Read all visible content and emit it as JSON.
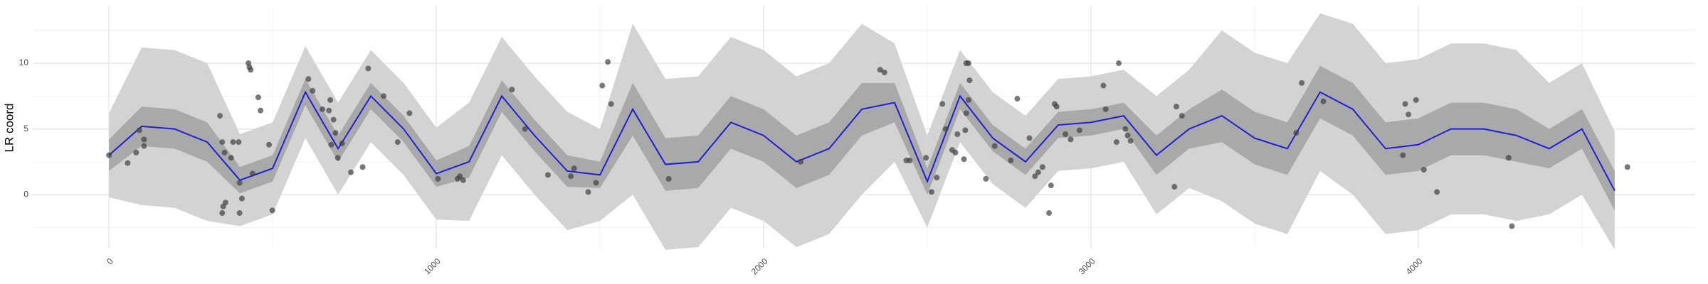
{
  "chart_data": {
    "type": "line",
    "ylabel": "LR coord",
    "xlim": [
      -233,
      4846
    ],
    "ylim": [
      -4.1,
      14.38
    ],
    "xticks": [
      0,
      1000,
      2000,
      3000,
      4000
    ],
    "yticks": [
      0,
      5,
      10
    ],
    "xminor": [
      500,
      1500,
      2500,
      3500,
      4500
    ],
    "yminor": [
      -2.5,
      2.5,
      7.5,
      12.5
    ],
    "grid": true,
    "x": [
      0,
      100,
      200,
      300,
      400,
      500,
      600,
      700,
      800,
      900,
      1000,
      1100,
      1200,
      1300,
      1400,
      1500,
      1600,
      1700,
      1800,
      1900,
      2000,
      2100,
      2200,
      2300,
      2400,
      2500,
      2600,
      2700,
      2800,
      2900,
      3000,
      3100,
      3200,
      3300,
      3400,
      3500,
      3600,
      3700,
      3800,
      3900,
      4000,
      4100,
      4200,
      4300,
      4400,
      4500,
      4600
    ],
    "bands": [
      {
        "color": "#d3d3d3",
        "lower": [
          -0.2,
          -0.8,
          -1.0,
          -2.0,
          -2.4,
          -1.5,
          4.3,
          0.0,
          4.0,
          1.5,
          -1.9,
          -2.0,
          3.0,
          0.0,
          -2.7,
          -2.0,
          0.0,
          -4.2,
          -4.0,
          -1.0,
          -2.0,
          -4.0,
          -3.0,
          0.0,
          2.5,
          -2.5,
          4.0,
          0.8,
          -1.0,
          1.8,
          2.0,
          2.5,
          -1.5,
          0.5,
          -0.5,
          -2.2,
          -3.0,
          1.8,
          0.0,
          -3.0,
          -2.7,
          -1.5,
          -1.5,
          -2.0,
          -1.5,
          0.0,
          -4.2
        ],
        "upper": [
          6.2,
          11.2,
          11.0,
          10.0,
          4.6,
          5.5,
          11.3,
          7.0,
          11.0,
          8.5,
          5.1,
          7.0,
          12.0,
          9.0,
          6.3,
          5.0,
          13.0,
          8.8,
          9.0,
          12.0,
          11.0,
          9.0,
          10.0,
          13.0,
          11.5,
          4.5,
          11.0,
          7.8,
          6.0,
          8.8,
          9.0,
          9.5,
          7.5,
          9.5,
          12.5,
          10.8,
          10.0,
          13.8,
          13.0,
          10.0,
          10.3,
          11.5,
          11.5,
          11.0,
          8.5,
          10.0,
          4.8
        ]
      },
      {
        "color": "#a9a9a9",
        "lower": [
          1.8,
          3.7,
          3.5,
          2.5,
          0.1,
          1.0,
          6.8,
          2.5,
          6.5,
          4.0,
          0.6,
          1.3,
          6.3,
          3.3,
          0.6,
          0.5,
          4.5,
          0.3,
          0.5,
          3.5,
          2.5,
          0.5,
          1.5,
          4.5,
          5.5,
          0.0,
          6.5,
          3.3,
          1.5,
          4.3,
          4.5,
          5.0,
          1.5,
          3.5,
          4.0,
          2.3,
          1.5,
          5.8,
          4.5,
          1.5,
          1.8,
          3.0,
          3.0,
          2.5,
          2.0,
          3.5,
          -1.2
        ],
        "upper": [
          4.2,
          6.7,
          6.5,
          5.5,
          2.1,
          3.0,
          8.8,
          4.5,
          8.5,
          6.0,
          2.6,
          3.7,
          8.7,
          5.7,
          3.0,
          2.5,
          8.5,
          4.3,
          4.5,
          7.5,
          6.5,
          4.5,
          5.5,
          8.5,
          8.5,
          2.0,
          8.5,
          5.3,
          3.5,
          6.3,
          6.5,
          7.0,
          4.5,
          6.5,
          8.0,
          6.3,
          5.5,
          9.8,
          8.5,
          5.5,
          5.8,
          7.0,
          7.0,
          6.5,
          5.0,
          6.5,
          1.8
        ]
      }
    ],
    "line": {
      "color": "#1f1fd6",
      "values": [
        3.0,
        5.2,
        5.0,
        4.0,
        1.1,
        2.0,
        7.8,
        3.5,
        7.5,
        5.0,
        1.6,
        2.5,
        7.5,
        4.5,
        1.8,
        1.5,
        6.5,
        2.3,
        2.5,
        5.5,
        4.5,
        2.5,
        3.5,
        6.5,
        7.0,
        1.0,
        7.5,
        4.3,
        2.5,
        5.3,
        5.5,
        6.0,
        3.0,
        5.0,
        6.0,
        4.3,
        3.5,
        7.8,
        6.5,
        3.5,
        3.8,
        5.0,
        5.0,
        4.5,
        3.5,
        5.0,
        0.3
      ]
    },
    "points": {
      "color": "#404040",
      "x": [
        0,
        57,
        93,
        107,
        107,
        83,
        339,
        346,
        353,
        349,
        356,
        346,
        373,
        379,
        396,
        399,
        399,
        406,
        426,
        429,
        433,
        439,
        456,
        463,
        499,
        489,
        609,
        622,
        652,
        676,
        672,
        679,
        686,
        692,
        699,
        712,
        739,
        775,
        792,
        839,
        882,
        918,
        1005,
        1065,
        1072,
        1082,
        1231,
        1271,
        1341,
        1411,
        1421,
        1464,
        1488,
        1507,
        1524,
        1534,
        1710,
        2113,
        2356,
        2369,
        2436,
        2446,
        2496,
        2513,
        2529,
        2546,
        2556,
        2576,
        2586,
        2592,
        2612,
        2616,
        2619,
        2626,
        2629,
        2619,
        2626,
        2679,
        2706,
        2755,
        2775,
        2812,
        2829,
        2839,
        2852,
        2878,
        2872,
        2889,
        2895,
        2922,
        2938,
        2965,
        3038,
        3045,
        3078,
        3085,
        3105,
        3112,
        3121,
        3255,
        3261,
        3278,
        3627,
        3644,
        3710,
        3953,
        3960,
        3970,
        3993,
        4017,
        4057,
        4276,
        4286,
        4639
      ],
      "y": [
        3.0,
        2.4,
        4.9,
        4.2,
        3.7,
        3.2,
        6.0,
        4.0,
        3.2,
        -0.9,
        -0.6,
        -1.4,
        2.8,
        4.0,
        4.0,
        0.9,
        -1.4,
        -0.3,
        10.0,
        9.7,
        9.5,
        1.6,
        7.4,
        6.4,
        -1.2,
        3.8,
        8.8,
        7.9,
        6.5,
        7.2,
        6.4,
        3.8,
        5.7,
        4.7,
        2.8,
        3.9,
        1.7,
        2.1,
        9.6,
        7.5,
        4.0,
        6.2,
        1.2,
        1.2,
        1.4,
        1.1,
        8.0,
        5.0,
        1.5,
        1.4,
        2.0,
        0.2,
        0.9,
        8.3,
        10.1,
        6.9,
        1.2,
        2.5,
        9.5,
        9.3,
        2.6,
        2.6,
        2.8,
        0.2,
        1.3,
        6.9,
        5.0,
        3.4,
        3.2,
        4.6,
        2.7,
        4.9,
        6.2,
        7.2,
        8.7,
        10.0,
        10.0,
        1.2,
        3.7,
        2.6,
        7.3,
        4.3,
        1.4,
        1.7,
        2.1,
        0.7,
        -1.4,
        6.9,
        6.7,
        4.6,
        4.2,
        4.9,
        8.3,
        6.5,
        4.0,
        10.0,
        5.0,
        4.5,
        4.1,
        0.6,
        6.7,
        6.0,
        4.7,
        8.5,
        7.1,
        3.0,
        6.9,
        6.1,
        7.2,
        1.9,
        0.2,
        2.8,
        -2.4,
        2.1
      ]
    }
  }
}
